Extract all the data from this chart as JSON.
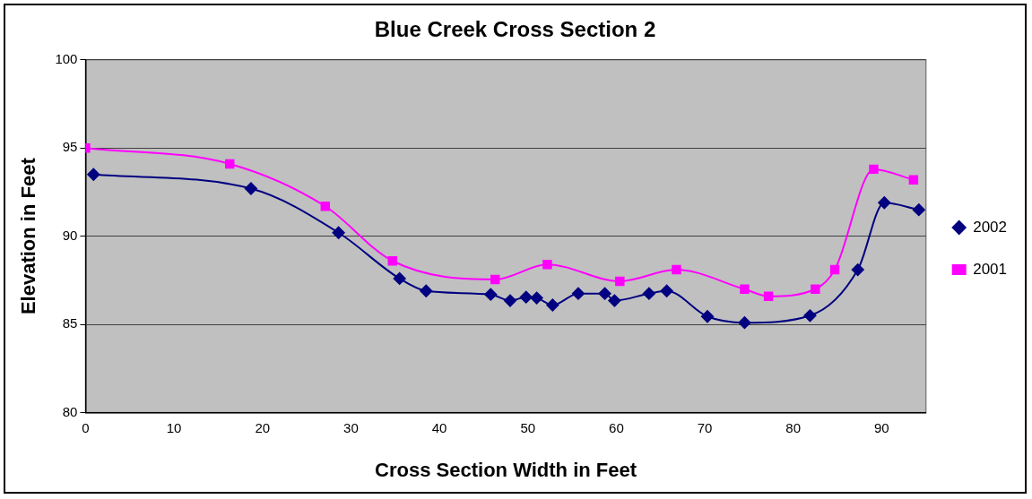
{
  "chart_data": {
    "type": "line",
    "title": "Blue Creek Cross Section 2",
    "xlabel": "Cross Section Width in Feet",
    "ylabel": "Elevation in Feet",
    "xlim": [
      0,
      95
    ],
    "xticks": [
      0,
      10,
      20,
      30,
      40,
      50,
      60,
      70,
      80,
      90
    ],
    "ylim": [
      80,
      100
    ],
    "yticks": [
      80,
      85,
      90,
      95,
      100
    ],
    "grid": "y",
    "legend": "right",
    "series": [
      {
        "name": "2002",
        "color": "#000080",
        "marker": "diamond",
        "x": [
          0.9,
          18.7,
          28.6,
          35.5,
          38.5,
          45.8,
          48.0,
          49.8,
          51.0,
          52.8,
          55.7,
          58.7,
          59.8,
          63.7,
          65.7,
          70.3,
          74.5,
          81.9,
          87.3,
          90.3,
          94.2
        ],
        "values": [
          93.5,
          92.7,
          90.2,
          87.6,
          86.9,
          86.7,
          86.35,
          86.55,
          86.5,
          86.1,
          86.75,
          86.75,
          86.35,
          86.75,
          86.9,
          85.45,
          85.1,
          85.5,
          88.1,
          91.9,
          91.5
        ]
      },
      {
        "name": "2001",
        "color": "#ff00ff",
        "marker": "square",
        "x": [
          0,
          16.3,
          27.1,
          34.7,
          46.3,
          52.2,
          60.4,
          66.8,
          74.5,
          77.2,
          82.5,
          84.7,
          89.1,
          93.6
        ],
        "values": [
          95.0,
          94.1,
          91.7,
          88.6,
          87.55,
          88.4,
          87.45,
          88.1,
          87.0,
          86.6,
          87.0,
          88.1,
          93.8,
          93.2
        ]
      }
    ]
  }
}
